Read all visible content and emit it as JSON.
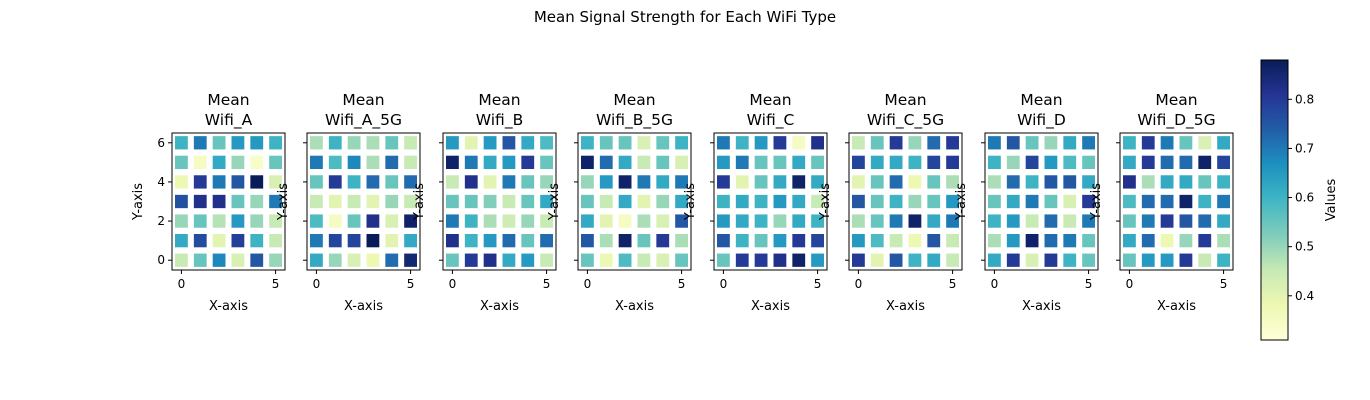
{
  "figure": {
    "suptitle": "Mean Signal Strength for Each WiFi Type"
  },
  "colorbar": {
    "label": "Values",
    "range": [
      0.31,
      0.88
    ],
    "ticks": [
      0.4,
      0.5,
      0.6,
      0.7,
      0.8
    ],
    "tick_labels": [
      "0.4",
      "0.5",
      "0.6",
      "0.7",
      "0.8"
    ],
    "colormap": "YlGnBu",
    "colormap_stops": [
      "#ffffd9",
      "#edf8b1",
      "#c7e9b4",
      "#7fcdbb",
      "#41b6c4",
      "#1d91c0",
      "#225ea8",
      "#253494",
      "#081d58"
    ]
  },
  "chart_data": [
    {
      "type": "heatmap",
      "title": "Mean\nWifi_A",
      "xlabel": "X-axis",
      "ylabel": "Y-axis",
      "x_ticks": [
        0,
        5
      ],
      "y_ticks": [
        0,
        2,
        4,
        6
      ],
      "x": [
        0,
        1,
        2,
        3,
        4,
        5
      ],
      "y": [
        0,
        1,
        2,
        3,
        4,
        5,
        6
      ],
      "values": [
        [
          0.45,
          0.55,
          0.68,
          0.42,
          0.75,
          0.5
        ],
        [
          0.62,
          0.77,
          0.4,
          0.79,
          0.6,
          0.45
        ],
        [
          0.5,
          0.55,
          0.47,
          0.65,
          0.5,
          0.45
        ],
        [
          0.76,
          0.82,
          0.82,
          0.55,
          0.5,
          0.7
        ],
        [
          0.38,
          0.8,
          0.7,
          0.75,
          0.88,
          0.42
        ],
        [
          0.55,
          0.35,
          0.62,
          0.5,
          0.34,
          0.55
        ],
        [
          0.6,
          0.7,
          0.55,
          0.65,
          0.65,
          0.6
        ]
      ]
    },
    {
      "type": "heatmap",
      "title": "Mean\nWifi_A_5G",
      "xlabel": "X-axis",
      "ylabel": "Y-axis",
      "x_ticks": [
        0,
        5
      ],
      "y_ticks": [
        0,
        2,
        4,
        6
      ],
      "x": [
        0,
        1,
        2,
        3,
        4,
        5
      ],
      "y": [
        0,
        1,
        2,
        3,
        4,
        5,
        6
      ],
      "values": [
        [
          0.62,
          0.5,
          0.42,
          0.38,
          0.72,
          0.85
        ],
        [
          0.7,
          0.78,
          0.78,
          0.88,
          0.4,
          0.62
        ],
        [
          0.58,
          0.35,
          0.55,
          0.82,
          0.42,
          0.86
        ],
        [
          0.45,
          0.4,
          0.45,
          0.4,
          0.5,
          0.45
        ],
        [
          0.55,
          0.8,
          0.6,
          0.72,
          0.55,
          0.72
        ],
        [
          0.7,
          0.58,
          0.68,
          0.48,
          0.72,
          0.45
        ],
        [
          0.48,
          0.6,
          0.5,
          0.48,
          0.55,
          0.45
        ]
      ]
    },
    {
      "type": "heatmap",
      "title": "Mean\nWifi_B",
      "xlabel": "X-axis",
      "ylabel": "Y-axis",
      "x_ticks": [
        0,
        5
      ],
      "y_ticks": [
        0,
        2,
        4,
        6
      ],
      "x": [
        0,
        1,
        2,
        3,
        4,
        5
      ],
      "y": [
        0,
        1,
        2,
        3,
        4,
        5,
        6
      ],
      "values": [
        [
          0.55,
          0.8,
          0.82,
          0.62,
          0.65,
          0.45
        ],
        [
          0.82,
          0.6,
          0.65,
          0.72,
          0.55,
          0.72
        ],
        [
          0.7,
          0.6,
          0.48,
          0.44,
          0.5,
          0.45
        ],
        [
          0.55,
          0.55,
          0.52,
          0.45,
          0.55,
          0.62
        ],
        [
          0.45,
          0.82,
          0.4,
          0.7,
          0.55,
          0.5
        ],
        [
          0.86,
          0.7,
          0.62,
          0.65,
          0.8,
          0.55
        ],
        [
          0.65,
          0.4,
          0.65,
          0.75,
          0.62,
          0.58
        ]
      ]
    },
    {
      "type": "heatmap",
      "title": "Mean\nWifi_B_5G",
      "xlabel": "X-axis",
      "ylabel": "Y-axis",
      "x_ticks": [
        0,
        5
      ],
      "y_ticks": [
        0,
        2,
        4,
        6
      ],
      "x": [
        0,
        1,
        2,
        3,
        4,
        5
      ],
      "y": [
        0,
        1,
        2,
        3,
        4,
        5,
        6
      ],
      "values": [
        [
          0.55,
          0.38,
          0.58,
          0.45,
          0.42,
          0.55
        ],
        [
          0.75,
          0.48,
          0.86,
          0.55,
          0.8,
          0.48
        ],
        [
          0.62,
          0.4,
          0.35,
          0.48,
          0.42,
          0.75
        ],
        [
          0.55,
          0.45,
          0.62,
          0.4,
          0.5,
          0.62
        ],
        [
          0.5,
          0.65,
          0.86,
          0.7,
          0.62,
          0.7
        ],
        [
          0.86,
          0.72,
          0.62,
          0.45,
          0.55,
          0.42
        ],
        [
          0.6,
          0.55,
          0.55,
          0.42,
          0.55,
          0.6
        ]
      ]
    },
    {
      "type": "heatmap",
      "title": "Mean\nWifi_C",
      "xlabel": "X-axis",
      "ylabel": "Y-axis",
      "x_ticks": [
        0,
        5
      ],
      "y_ticks": [
        0,
        2,
        4,
        6
      ],
      "x": [
        0,
        1,
        2,
        3,
        4,
        5
      ],
      "y": [
        0,
        1,
        2,
        3,
        4,
        5,
        6
      ],
      "values": [
        [
          0.55,
          0.8,
          0.8,
          0.82,
          0.86,
          0.65
        ],
        [
          0.75,
          0.6,
          0.55,
          0.65,
          0.8,
          0.78
        ],
        [
          0.65,
          0.62,
          0.6,
          0.5,
          0.62,
          0.6
        ],
        [
          0.6,
          0.62,
          0.6,
          0.65,
          0.62,
          0.45
        ],
        [
          0.8,
          0.4,
          0.55,
          0.62,
          0.86,
          0.62
        ],
        [
          0.65,
          0.7,
          0.55,
          0.55,
          0.62,
          0.55
        ],
        [
          0.7,
          0.6,
          0.65,
          0.8,
          0.35,
          0.82
        ]
      ]
    },
    {
      "type": "heatmap",
      "title": "Mean\nWifi_C_5G",
      "xlabel": "X-axis",
      "ylabel": "Y-axis",
      "x_ticks": [
        0,
        5
      ],
      "y_ticks": [
        0,
        2,
        4,
        6
      ],
      "x": [
        0,
        1,
        2,
        3,
        4,
        5
      ],
      "y": [
        0,
        1,
        2,
        3,
        4,
        5,
        6
      ],
      "values": [
        [
          0.8,
          0.4,
          0.75,
          0.6,
          0.62,
          0.45
        ],
        [
          0.65,
          0.58,
          0.45,
          0.38,
          0.75,
          0.45
        ],
        [
          0.48,
          0.55,
          0.7,
          0.86,
          0.62,
          0.7
        ],
        [
          0.75,
          0.55,
          0.6,
          0.5,
          0.55,
          0.65
        ],
        [
          0.4,
          0.55,
          0.72,
          0.38,
          0.55,
          0.48
        ],
        [
          0.78,
          0.62,
          0.62,
          0.6,
          0.78,
          0.8
        ],
        [
          0.45,
          0.55,
          0.8,
          0.5,
          0.72,
          0.8
        ]
      ]
    },
    {
      "type": "heatmap",
      "title": "Mean\nWifi_D",
      "xlabel": "X-axis",
      "ylabel": "Y-axis",
      "x_ticks": [
        0,
        5
      ],
      "y_ticks": [
        0,
        2,
        4,
        6
      ],
      "x": [
        0,
        1,
        2,
        3,
        4,
        5
      ],
      "y": [
        0,
        1,
        2,
        3,
        4,
        5,
        6
      ],
      "values": [
        [
          0.62,
          0.8,
          0.42,
          0.8,
          0.6,
          0.55
        ],
        [
          0.48,
          0.65,
          0.86,
          0.72,
          0.7,
          0.55
        ],
        [
          0.6,
          0.65,
          0.45,
          0.72,
          0.45,
          0.7
        ],
        [
          0.55,
          0.62,
          0.7,
          0.55,
          0.42,
          0.8
        ],
        [
          0.48,
          0.72,
          0.6,
          0.75,
          0.75,
          0.62
        ],
        [
          0.6,
          0.5,
          0.78,
          0.65,
          0.58,
          0.55
        ],
        [
          0.7,
          0.75,
          0.55,
          0.5,
          0.62,
          0.7
        ]
      ]
    },
    {
      "type": "heatmap",
      "title": "Mean\nWifi_D_5G",
      "xlabel": "X-axis",
      "ylabel": "Y-axis",
      "x_ticks": [
        0,
        5
      ],
      "y_ticks": [
        0,
        2,
        4,
        6
      ],
      "x": [
        0,
        1,
        2,
        3,
        4,
        5
      ],
      "y": [
        0,
        1,
        2,
        3,
        4,
        5,
        6
      ],
      "values": [
        [
          0.55,
          0.65,
          0.65,
          0.8,
          0.45,
          0.6
        ],
        [
          0.62,
          0.72,
          0.38,
          0.5,
          0.8,
          0.48
        ],
        [
          0.55,
          0.7,
          0.8,
          0.75,
          0.72,
          0.62
        ],
        [
          0.58,
          0.72,
          0.72,
          0.86,
          0.6,
          0.7
        ],
        [
          0.82,
          0.48,
          0.62,
          0.62,
          0.55,
          0.6
        ],
        [
          0.62,
          0.8,
          0.72,
          0.72,
          0.86,
          0.78
        ],
        [
          0.6,
          0.8,
          0.7,
          0.55,
          0.42,
          0.62
        ]
      ]
    }
  ]
}
